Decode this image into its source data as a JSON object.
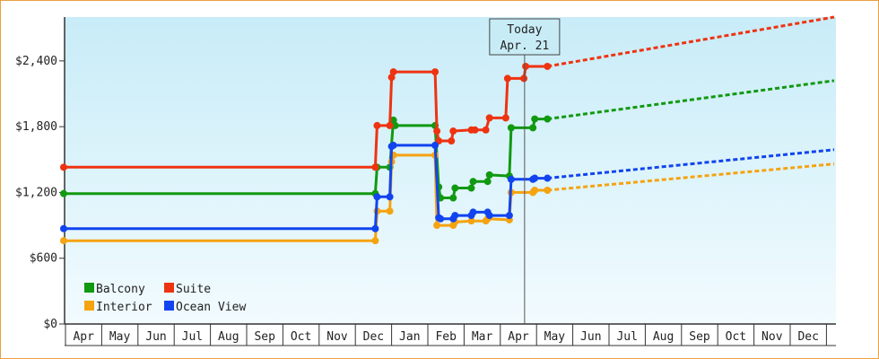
{
  "chart_data": {
    "type": "line",
    "y_tick_labels": [
      "$0",
      "$600",
      "$1,200",
      "$1,800",
      "$2,400"
    ],
    "y_tick_values": [
      0,
      600,
      1200,
      1800,
      2400
    ],
    "ylim": [
      0,
      2800
    ],
    "month_labels": [
      "Apr",
      "May",
      "Jun",
      "Jul",
      "Aug",
      "Sep",
      "Oct",
      "Nov",
      "Dec",
      "Jan",
      "Feb",
      "Mar",
      "Apr",
      "May",
      "Jun",
      "Jul",
      "Aug",
      "Sep",
      "Oct",
      "Nov",
      "Dec"
    ],
    "x_unit": "months since first Apr tick",
    "xlim": [
      -0.05,
      21.3
    ],
    "today_x": 12.67,
    "today_label_line1": "Today",
    "today_label_line2": "Apr. 21",
    "legend_position": "bottom-left",
    "grid": false,
    "series": [
      {
        "name": "Balcony",
        "color": "#119911",
        "points": [
          [
            -0.05,
            1190
          ],
          [
            8.55,
            1190
          ],
          [
            8.6,
            1430
          ],
          [
            8.95,
            1430
          ],
          [
            9.05,
            1860
          ],
          [
            9.1,
            1810
          ],
          [
            10.2,
            1810
          ],
          [
            10.3,
            1250
          ],
          [
            10.35,
            1150
          ],
          [
            10.7,
            1150
          ],
          [
            10.75,
            1240
          ],
          [
            11.2,
            1240
          ],
          [
            11.25,
            1300
          ],
          [
            11.65,
            1300
          ],
          [
            11.7,
            1360
          ],
          [
            12.25,
            1350
          ],
          [
            12.3,
            1790
          ],
          [
            12.9,
            1790
          ],
          [
            12.95,
            1870
          ],
          [
            13.3,
            1870
          ]
        ],
        "projection": [
          [
            13.3,
            1870
          ],
          [
            21.3,
            2220
          ]
        ]
      },
      {
        "name": "Suite",
        "color": "#ee3311",
        "points": [
          [
            -0.05,
            1430
          ],
          [
            8.55,
            1430
          ],
          [
            8.6,
            1810
          ],
          [
            8.95,
            1810
          ],
          [
            9.0,
            2250
          ],
          [
            9.05,
            2300
          ],
          [
            10.2,
            2300
          ],
          [
            10.25,
            1760
          ],
          [
            10.3,
            1670
          ],
          [
            10.65,
            1670
          ],
          [
            10.7,
            1760
          ],
          [
            11.2,
            1770
          ],
          [
            11.3,
            1770
          ],
          [
            11.6,
            1770
          ],
          [
            11.7,
            1880
          ],
          [
            12.15,
            1880
          ],
          [
            12.2,
            2240
          ],
          [
            12.65,
            2240
          ],
          [
            12.7,
            2350
          ],
          [
            13.3,
            2350
          ]
        ],
        "projection": [
          [
            13.3,
            2350
          ],
          [
            21.3,
            2800
          ]
        ]
      },
      {
        "name": "Interior",
        "color": "#f5a311",
        "points": [
          [
            -0.05,
            760
          ],
          [
            8.55,
            760
          ],
          [
            8.6,
            1030
          ],
          [
            8.95,
            1030
          ],
          [
            9.0,
            1480
          ],
          [
            9.05,
            1540
          ],
          [
            10.2,
            1540
          ],
          [
            10.25,
            900
          ],
          [
            10.7,
            900
          ],
          [
            10.75,
            930
          ],
          [
            11.2,
            940
          ],
          [
            11.6,
            940
          ],
          [
            11.65,
            960
          ],
          [
            12.25,
            950
          ],
          [
            12.3,
            1200
          ],
          [
            12.9,
            1200
          ],
          [
            12.95,
            1220
          ],
          [
            13.3,
            1220
          ]
        ],
        "projection": [
          [
            13.3,
            1220
          ],
          [
            21.3,
            1460
          ]
        ]
      },
      {
        "name": "Ocean View",
        "color": "#1144ee",
        "points": [
          [
            -0.05,
            870
          ],
          [
            8.55,
            870
          ],
          [
            8.6,
            1160
          ],
          [
            8.95,
            1160
          ],
          [
            9.0,
            1620
          ],
          [
            9.05,
            1630
          ],
          [
            10.2,
            1630
          ],
          [
            10.3,
            970
          ],
          [
            10.35,
            960
          ],
          [
            10.7,
            960
          ],
          [
            10.75,
            990
          ],
          [
            11.2,
            990
          ],
          [
            11.25,
            1020
          ],
          [
            11.65,
            1020
          ],
          [
            11.7,
            990
          ],
          [
            12.25,
            990
          ],
          [
            12.3,
            1320
          ],
          [
            12.9,
            1320
          ],
          [
            12.95,
            1330
          ],
          [
            13.3,
            1330
          ]
        ],
        "projection": [
          [
            13.3,
            1330
          ],
          [
            21.3,
            1590
          ]
        ]
      }
    ]
  }
}
